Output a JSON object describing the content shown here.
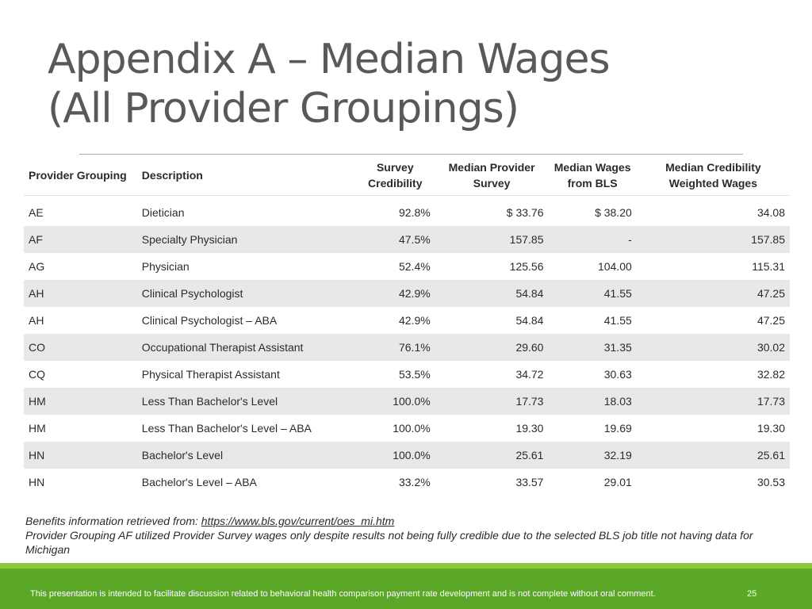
{
  "title": {
    "line1": "Appendix A – Median Wages",
    "line2": "(All Provider Groupings)"
  },
  "table": {
    "headers": {
      "provider_grouping": "Provider Grouping",
      "description": "Description",
      "survey_credibility": [
        "Survey",
        "Credibility"
      ],
      "median_provider_survey": [
        "Median Provider",
        "Survey"
      ],
      "median_wages_bls": [
        "Median Wages",
        "from BLS"
      ],
      "median_credibility_weighted": [
        "Median Credibility",
        "Weighted Wages"
      ]
    },
    "rows": [
      {
        "code": "AE",
        "description": "Dietician",
        "credibility": "92.8%",
        "survey": "$ 33.76",
        "bls": "$ 38.20",
        "weighted": "34.08"
      },
      {
        "code": "AF",
        "description": "Specialty Physician",
        "credibility": "47.5%",
        "survey": "157.85",
        "bls": "-",
        "weighted": "157.85"
      },
      {
        "code": "AG",
        "description": "Physician",
        "credibility": "52.4%",
        "survey": "125.56",
        "bls": "104.00",
        "weighted": "115.31"
      },
      {
        "code": "AH",
        "description": "Clinical Psychologist",
        "credibility": "42.9%",
        "survey": "54.84",
        "bls": "41.55",
        "weighted": "47.25"
      },
      {
        "code": "AH",
        "description": "Clinical Psychologist – ABA",
        "credibility": "42.9%",
        "survey": "54.84",
        "bls": "41.55",
        "weighted": "47.25"
      },
      {
        "code": "CO",
        "description": "Occupational Therapist Assistant",
        "credibility": "76.1%",
        "survey": "29.60",
        "bls": "31.35",
        "weighted": "30.02"
      },
      {
        "code": "CQ",
        "description": "Physical Therapist Assistant",
        "credibility": "53.5%",
        "survey": "34.72",
        "bls": "30.63",
        "weighted": "32.82"
      },
      {
        "code": "HM",
        "description": "Less Than Bachelor's Level",
        "credibility": "100.0%",
        "survey": "17.73",
        "bls": "18.03",
        "weighted": "17.73"
      },
      {
        "code": "HM",
        "description": "Less Than Bachelor's Level – ABA",
        "credibility": "100.0%",
        "survey": "19.30",
        "bls": "19.69",
        "weighted": "19.30"
      },
      {
        "code": "HN",
        "description": "Bachelor's Level",
        "credibility": "100.0%",
        "survey": "25.61",
        "bls": "32.19",
        "weighted": "25.61"
      },
      {
        "code": "HN",
        "description": "Bachelor's Level – ABA",
        "credibility": "33.2%",
        "survey": "33.57",
        "bls": "29.01",
        "weighted": "30.53"
      }
    ]
  },
  "notes": {
    "benefits_prefix": "Benefits information retrieved from: ",
    "benefits_link": "https://www.bls.gov/current/oes_mi.htm",
    "af_note": "Provider Grouping AF utilized Provider Survey wages only despite results not being fully credible due to the selected BLS job title not having data for Michigan"
  },
  "footer": {
    "disclaimer": "This presentation is intended to facilitate discussion related to behavioral health comparison payment rate development and is not complete without oral comment.",
    "page_number": "25"
  },
  "colors": {
    "footer_green": "#5ba829",
    "footer_light_green": "#8dc63f",
    "row_shade": "#e8e8e8"
  }
}
